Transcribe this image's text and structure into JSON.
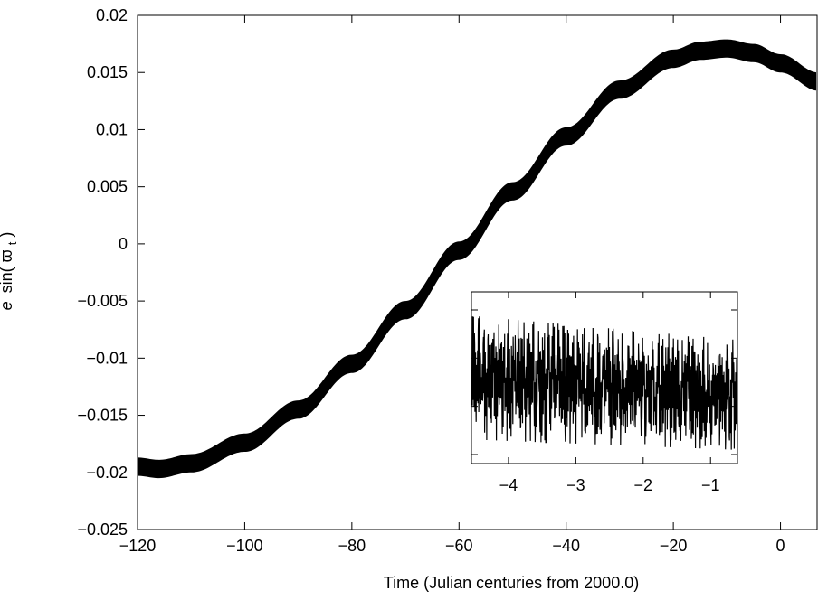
{
  "chart_data": [
    {
      "type": "line",
      "title": "",
      "xlabel": "Time (Julian centuries from 2000.0)",
      "ylabel": "e sin(ϖ_t)",
      "ylabel_parts": {
        "var": "e",
        "fn": "sin(",
        "sym": "ϖ",
        "sub": "t",
        "close": ")"
      },
      "xlim": [
        -120,
        7
      ],
      "ylim": [
        -0.025,
        0.02
      ],
      "x_ticks": [
        -120,
        -100,
        -80,
        -60,
        -40,
        -20,
        0
      ],
      "x_tick_labels": [
        "−120",
        "−100",
        "−80",
        "−60",
        "−40",
        "−20",
        "0"
      ],
      "y_ticks": [
        -0.025,
        -0.02,
        -0.015,
        -0.01,
        -0.005,
        0,
        0.005,
        0.01,
        0.015,
        0.02
      ],
      "y_tick_labels": [
        "−0.025",
        "−0.02",
        "−0.015",
        "−0.01",
        "−0.005",
        "0",
        "0.005",
        "0.01",
        "0.015",
        "0.02"
      ],
      "grid": false,
      "legend": "none",
      "line_color": "#000000",
      "band_halfwidth": 0.0008,
      "series": [
        {
          "x": [
            -120,
            -116,
            -110,
            -100,
            -90,
            -80,
            -70,
            -60,
            -50,
            -40,
            -30,
            -20,
            -15,
            -10,
            -5,
            0,
            7
          ],
          "y": [
            -0.0195,
            -0.0197,
            -0.0192,
            -0.0174,
            -0.0145,
            -0.0105,
            -0.0058,
            -0.0006,
            0.0046,
            0.0094,
            0.0135,
            0.0162,
            0.0169,
            0.0171,
            0.0167,
            0.0158,
            0.0142
          ]
        }
      ]
    },
    {
      "type": "line",
      "title": "",
      "xlabel": "",
      "ylabel": "",
      "xlim": [
        -4.55,
        -0.6
      ],
      "x_ticks": [
        -4,
        -3,
        -2,
        -1
      ],
      "x_tick_labels": [
        "−4",
        "−3",
        "−2",
        "−1"
      ],
      "y_tick_count": 4,
      "grid": false,
      "legend": "none",
      "line_color": "#000000",
      "series": [
        {
          "x": [
            -4.55,
            -0.6
          ],
          "y_center": [
            0.5,
            0.4
          ],
          "y_amplitude_fraction": [
            0.36,
            0.32
          ]
        }
      ]
    }
  ]
}
